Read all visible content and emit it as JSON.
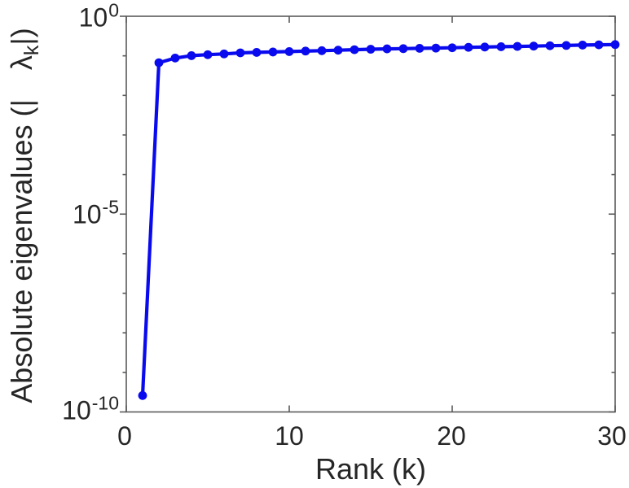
{
  "figure": {
    "background": "#ffffff",
    "axis_color": "#5a5a5a",
    "text_color": "#262626"
  },
  "axes": {
    "x": {
      "label": "Rank (k)",
      "ticks": [
        "0",
        "10",
        "20",
        "30"
      ]
    },
    "y": {
      "label": {
        "prefix": "Absolute eigenvalues (|",
        "lambda": "λ",
        "subscript": "k",
        "suffix": "|)"
      },
      "ticks": [
        {
          "base": "10",
          "exp": "0"
        },
        {
          "base": "10",
          "exp": "-5"
        },
        {
          "base": "10",
          "exp": "-10"
        }
      ]
    }
  },
  "chart_data": {
    "type": "line",
    "title": "",
    "xlabel": "Rank (k)",
    "ylabel": "Absolute eigenvalues (|λ_k|)",
    "yscale": "log",
    "xlim": [
      0,
      30
    ],
    "ylim": [
      1e-10,
      1
    ],
    "x_tick_values": [
      0,
      10,
      20,
      30
    ],
    "y_tick_exponents": [
      0,
      -5,
      -10
    ],
    "y_minor_tick_exponents": [
      -1,
      -2,
      -3,
      -4,
      -6,
      -7,
      -8,
      -9
    ],
    "grid": false,
    "legend": "none",
    "line_color": "#0a0aee",
    "marker": "circle",
    "x": [
      1,
      2,
      3,
      4,
      5,
      6,
      7,
      8,
      9,
      10,
      11,
      12,
      13,
      14,
      15,
      16,
      17,
      18,
      19,
      20,
      21,
      22,
      23,
      24,
      25,
      26,
      27,
      28,
      29,
      30
    ],
    "y": [
      2.6e-10,
      0.067,
      0.088,
      0.101,
      0.107,
      0.112,
      0.119,
      0.122,
      0.125,
      0.128,
      0.132,
      0.135,
      0.139,
      0.143,
      0.147,
      0.15,
      0.152,
      0.155,
      0.157,
      0.16,
      0.164,
      0.167,
      0.17,
      0.173,
      0.176,
      0.18,
      0.183,
      0.187,
      0.19,
      0.193
    ]
  }
}
